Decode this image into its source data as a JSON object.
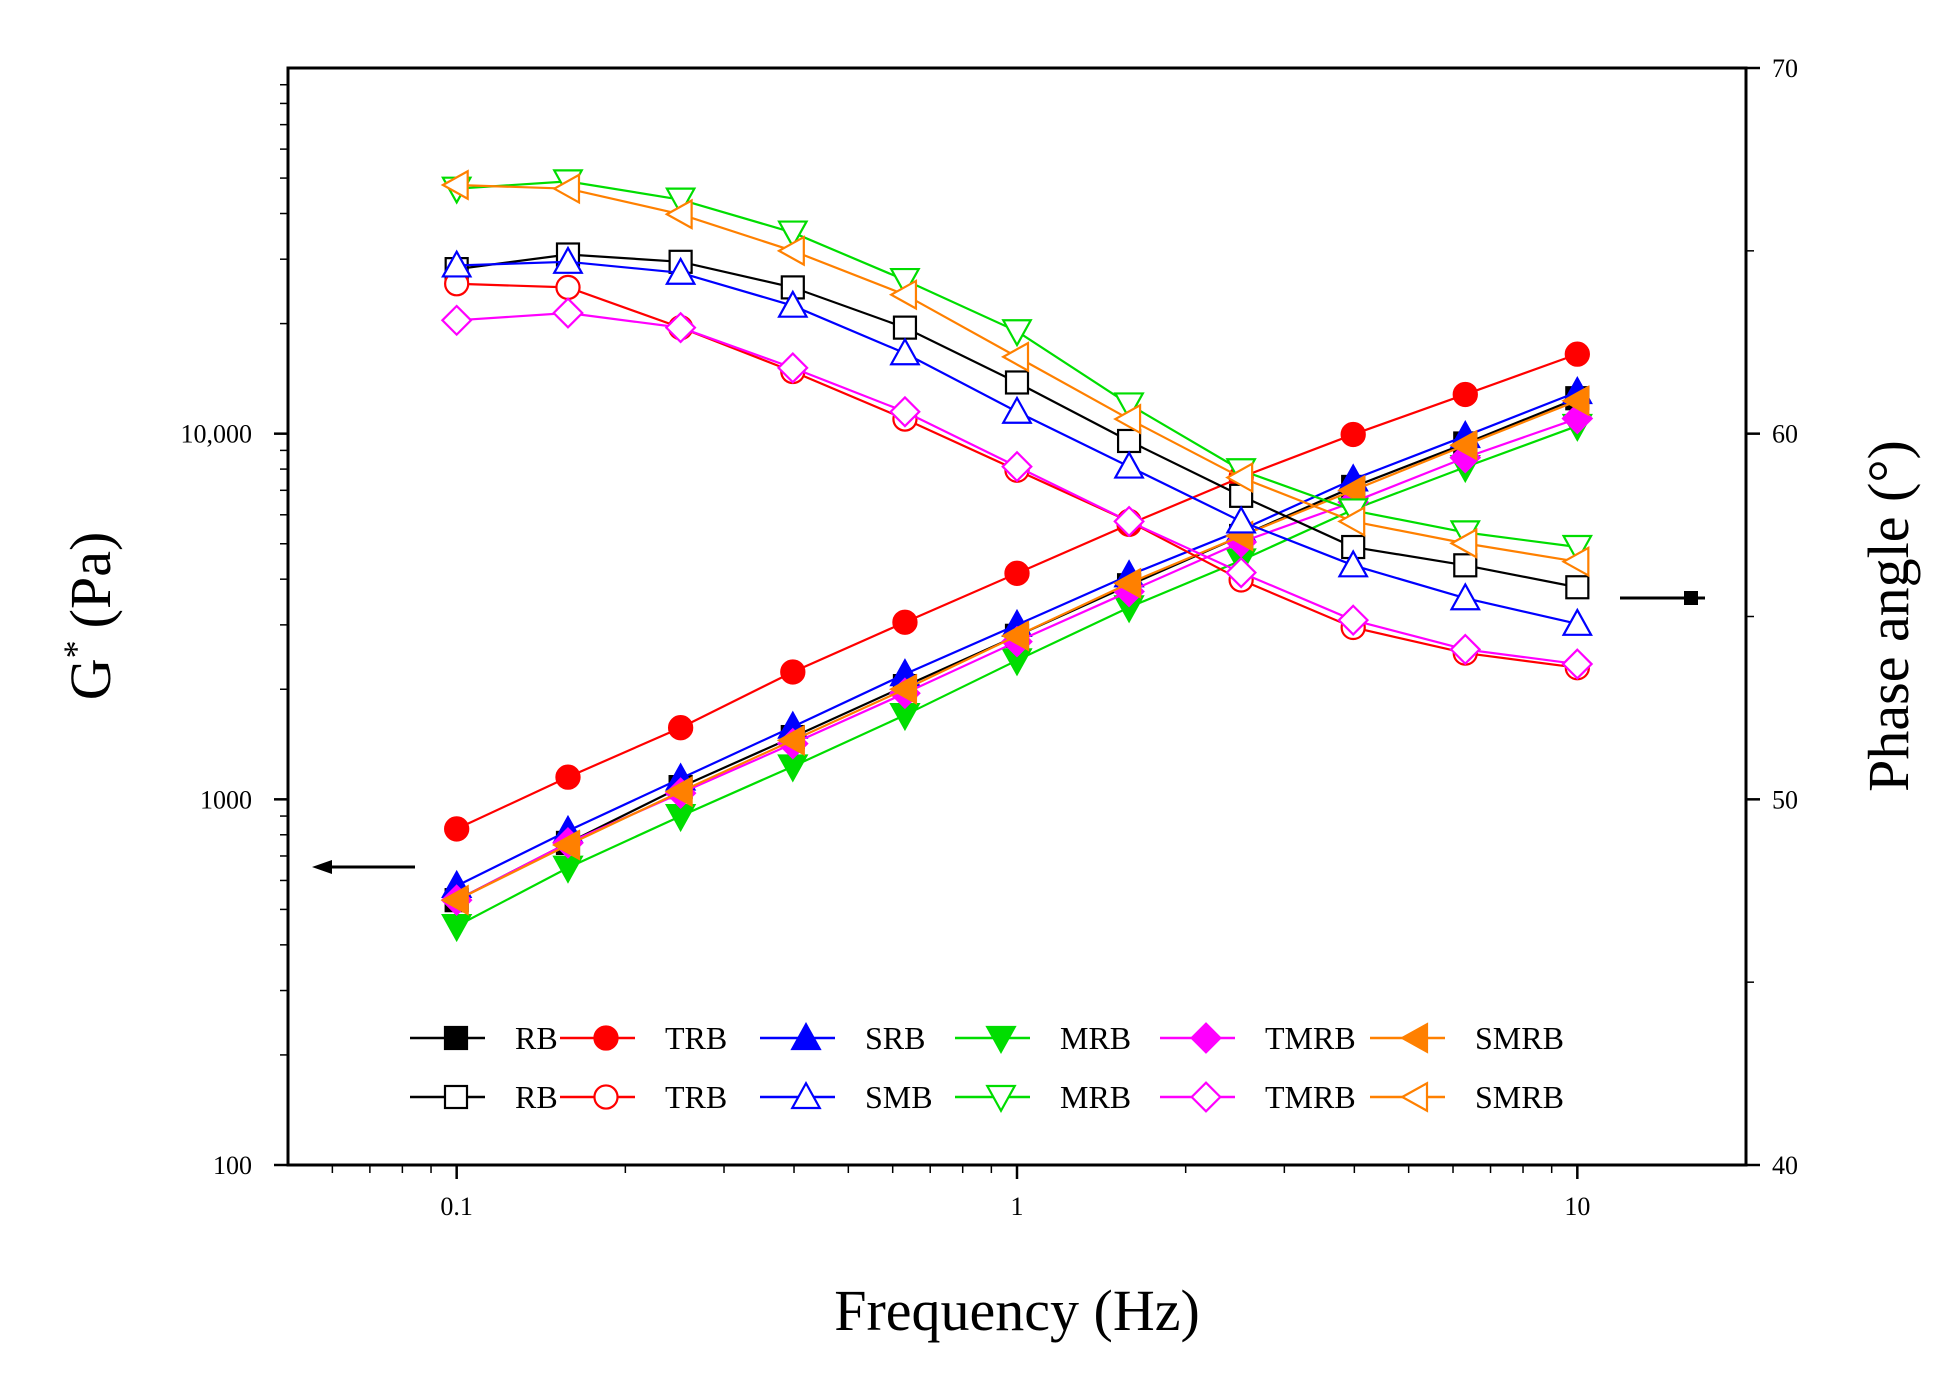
{
  "chart_data": {
    "type": "line",
    "xlabel": "Frequency (Hz)",
    "ylabel_left": "G* (Pa)",
    "ylabel_left_base": "G",
    "ylabel_left_sup": "*",
    "ylabel_left_unit": "(Pa)",
    "ylabel_right": "Phase angle (°)",
    "x_scale": "log",
    "xlim": [
      0.05,
      20
    ],
    "x_ticks": [
      {
        "value": 0.1,
        "label": "0.1"
      },
      {
        "value": 1,
        "label": "1"
      },
      {
        "value": 10,
        "label": "10"
      }
    ],
    "y_left_scale": "log",
    "ylim_left": [
      100,
      100000
    ],
    "y_left_ticks": [
      {
        "value": 100,
        "label": "100"
      },
      {
        "value": 1000,
        "label": "1000"
      },
      {
        "value": 10000,
        "label": "10,000"
      }
    ],
    "ylim_right": [
      40,
      70
    ],
    "y_right_ticks": [
      {
        "value": 40,
        "label": "40"
      },
      {
        "value": 50,
        "label": "50"
      },
      {
        "value": 60,
        "label": "60"
      },
      {
        "value": 70,
        "label": "70"
      }
    ],
    "x": [
      0.1,
      0.158,
      0.251,
      0.398,
      0.631,
      1.0,
      1.585,
      2.512,
      3.981,
      6.31,
      10.0
    ],
    "series": [
      {
        "name": "RB",
        "axis": "left",
        "color": "#000000",
        "marker": "square",
        "filled": true,
        "values": [
          530,
          760,
          1080,
          1480,
          2040,
          2800,
          3850,
          5250,
          7150,
          9400,
          12500
        ]
      },
      {
        "name": "TRB",
        "axis": "left",
        "color": "#ff0000",
        "marker": "circle",
        "filled": true,
        "values": [
          830,
          1150,
          1570,
          2230,
          3050,
          4150,
          5650,
          7600,
          9950,
          12800,
          16500
        ]
      },
      {
        "name": "SRB",
        "axis": "left",
        "color": "#0000ff",
        "marker": "triangle-up",
        "filled": true,
        "values": [
          580,
          820,
          1140,
          1580,
          2200,
          3000,
          4100,
          5450,
          7500,
          9850,
          13000
        ]
      },
      {
        "name": "MRB",
        "axis": "left",
        "color": "#00dd00",
        "marker": "triangle-down",
        "filled": true,
        "values": [
          450,
          650,
          900,
          1230,
          1700,
          2400,
          3350,
          4500,
          6200,
          8100,
          10500
        ]
      },
      {
        "name": "TMRB",
        "axis": "left",
        "color": "#ff00ff",
        "marker": "diamond",
        "filled": true,
        "values": [
          530,
          760,
          1040,
          1420,
          1950,
          2700,
          3700,
          5050,
          6500,
          8600,
          11000
        ]
      },
      {
        "name": "SMRB",
        "axis": "left",
        "color": "#ff8000",
        "marker": "triangle-left",
        "filled": true,
        "values": [
          530,
          750,
          1050,
          1450,
          2000,
          2800,
          3900,
          5250,
          7000,
          9300,
          12300
        ]
      },
      {
        "name": "RB",
        "axis": "right",
        "color": "#000000",
        "marker": "square",
        "filled": false,
        "values": [
          64.5,
          64.9,
          64.7,
          64.0,
          62.9,
          61.4,
          59.8,
          58.3,
          56.9,
          56.4,
          55.8
        ]
      },
      {
        "name": "TRB",
        "axis": "right",
        "color": "#ff0000",
        "marker": "circle",
        "filled": false,
        "values": [
          64.1,
          64.0,
          62.9,
          61.7,
          60.4,
          59.0,
          57.6,
          56.0,
          54.7,
          54.0,
          53.6
        ]
      },
      {
        "name": "SMB",
        "axis": "right",
        "color": "#0000ff",
        "marker": "triangle-up",
        "filled": false,
        "values": [
          64.6,
          64.7,
          64.4,
          63.5,
          62.2,
          60.6,
          59.1,
          57.6,
          56.4,
          55.5,
          54.8
        ]
      },
      {
        "name": "MRB",
        "axis": "right",
        "color": "#00dd00",
        "marker": "triangle-down",
        "filled": false,
        "values": [
          66.7,
          66.9,
          66.4,
          65.5,
          64.2,
          62.8,
          60.8,
          59.0,
          57.9,
          57.3,
          56.9
        ]
      },
      {
        "name": "TMRB",
        "axis": "right",
        "color": "#ff00ff",
        "marker": "diamond",
        "filled": false,
        "values": [
          63.1,
          63.3,
          62.9,
          61.8,
          60.6,
          59.1,
          57.6,
          56.2,
          54.9,
          54.1,
          53.7
        ]
      },
      {
        "name": "SMRB",
        "axis": "right",
        "color": "#ff8000",
        "marker": "triangle-left",
        "filled": false,
        "values": [
          66.8,
          66.7,
          66.0,
          65.0,
          63.8,
          62.1,
          60.4,
          58.8,
          57.6,
          57.0,
          56.5
        ]
      }
    ],
    "legend_location": "bottom-center",
    "arrow_annotations": [
      {
        "points_to": "left-axis"
      },
      {
        "points_to": "right-axis"
      }
    ]
  }
}
